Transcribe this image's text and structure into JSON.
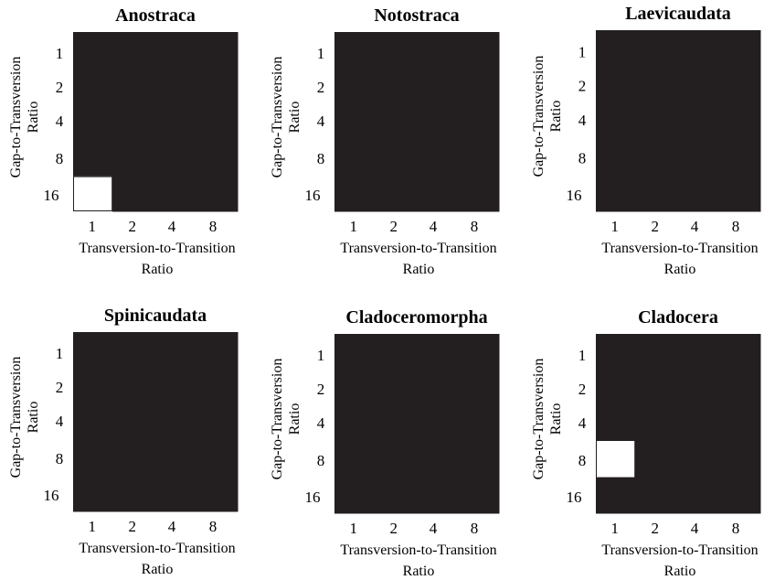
{
  "chart_data": [
    {
      "type": "heatmap",
      "title": "Anostraca",
      "xlabel": [
        "Transversion-to-Transition",
        "Ratio"
      ],
      "ylabel": [
        "Gap-to-Transversion",
        "Ratio"
      ],
      "x_categories": [
        "1",
        "2",
        "4",
        "8"
      ],
      "y_categories": [
        "1",
        "2",
        "4",
        "8",
        "16"
      ],
      "values": [
        [
          0,
          0,
          0,
          0
        ],
        [
          0,
          0,
          0,
          0
        ],
        [
          0,
          0,
          0,
          0
        ],
        [
          0,
          0,
          0,
          0
        ],
        [
          1,
          0,
          0,
          0
        ]
      ],
      "colors": {
        "0": "#231f20",
        "1": "#ffffff"
      }
    },
    {
      "type": "heatmap",
      "title": "Notostraca",
      "xlabel": [
        "Transversion-to-Transition",
        "Ratio"
      ],
      "ylabel": [
        "Gap-to-Transversion",
        "Ratio"
      ],
      "x_categories": [
        "1",
        "2",
        "4",
        "8"
      ],
      "y_categories": [
        "1",
        "2",
        "4",
        "8",
        "16"
      ],
      "values": [
        [
          0,
          0,
          0,
          0
        ],
        [
          0,
          0,
          0,
          0
        ],
        [
          0,
          0,
          0,
          0
        ],
        [
          0,
          0,
          0,
          0
        ],
        [
          0,
          0,
          0,
          0
        ]
      ],
      "colors": {
        "0": "#231f20",
        "1": "#ffffff"
      }
    },
    {
      "type": "heatmap",
      "title": "Laevicaudata",
      "xlabel": [
        "Transversion-to-Transition",
        "Ratio"
      ],
      "ylabel": [
        "Gap-to-Transversion",
        "Ratio"
      ],
      "x_categories": [
        "1",
        "2",
        "4",
        "8"
      ],
      "y_categories": [
        "1",
        "2",
        "4",
        "8",
        "16"
      ],
      "values": [
        [
          0,
          0,
          0,
          0
        ],
        [
          0,
          0,
          0,
          0
        ],
        [
          0,
          0,
          0,
          0
        ],
        [
          0,
          0,
          0,
          0
        ],
        [
          0,
          0,
          0,
          0
        ]
      ],
      "colors": {
        "0": "#231f20",
        "1": "#ffffff"
      }
    },
    {
      "type": "heatmap",
      "title": "Spinicaudata",
      "xlabel": [
        "Transversion-to-Transition",
        "Ratio"
      ],
      "ylabel": [
        "Gap-to-Transversion",
        "Ratio"
      ],
      "x_categories": [
        "1",
        "2",
        "4",
        "8"
      ],
      "y_categories": [
        "1",
        "2",
        "4",
        "8",
        "16"
      ],
      "values": [
        [
          0,
          0,
          0,
          0
        ],
        [
          0,
          0,
          0,
          0
        ],
        [
          0,
          0,
          0,
          0
        ],
        [
          0,
          0,
          0,
          0
        ],
        [
          0,
          0,
          0,
          0
        ]
      ],
      "colors": {
        "0": "#231f20",
        "1": "#ffffff"
      }
    },
    {
      "type": "heatmap",
      "title": "Cladoceromorpha",
      "xlabel": [
        "Transversion-to-Transition",
        "Ratio"
      ],
      "ylabel": [
        "Gap-to-Transversion",
        "Ratio"
      ],
      "x_categories": [
        "1",
        "2",
        "4",
        "8"
      ],
      "y_categories": [
        "1",
        "2",
        "4",
        "8",
        "16"
      ],
      "values": [
        [
          0,
          0,
          0,
          0
        ],
        [
          0,
          0,
          0,
          0
        ],
        [
          0,
          0,
          0,
          0
        ],
        [
          0,
          0,
          0,
          0
        ],
        [
          0,
          0,
          0,
          0
        ]
      ],
      "colors": {
        "0": "#231f20",
        "1": "#ffffff"
      }
    },
    {
      "type": "heatmap",
      "title": "Cladocera",
      "xlabel": [
        "Transversion-to-Transition",
        "Ratio"
      ],
      "ylabel": [
        "Gap-to-Transversion",
        "Ratio"
      ],
      "x_categories": [
        "1",
        "2",
        "4",
        "8"
      ],
      "y_categories": [
        "1",
        "2",
        "4",
        "8",
        "16"
      ],
      "values": [
        [
          0,
          0,
          0,
          0
        ],
        [
          0,
          0,
          0,
          0
        ],
        [
          0,
          0,
          0,
          0
        ],
        [
          1,
          0,
          0,
          0
        ],
        [
          0,
          0,
          0,
          0
        ]
      ],
      "colors": {
        "0": "#231f20",
        "1": "#ffffff"
      }
    }
  ]
}
